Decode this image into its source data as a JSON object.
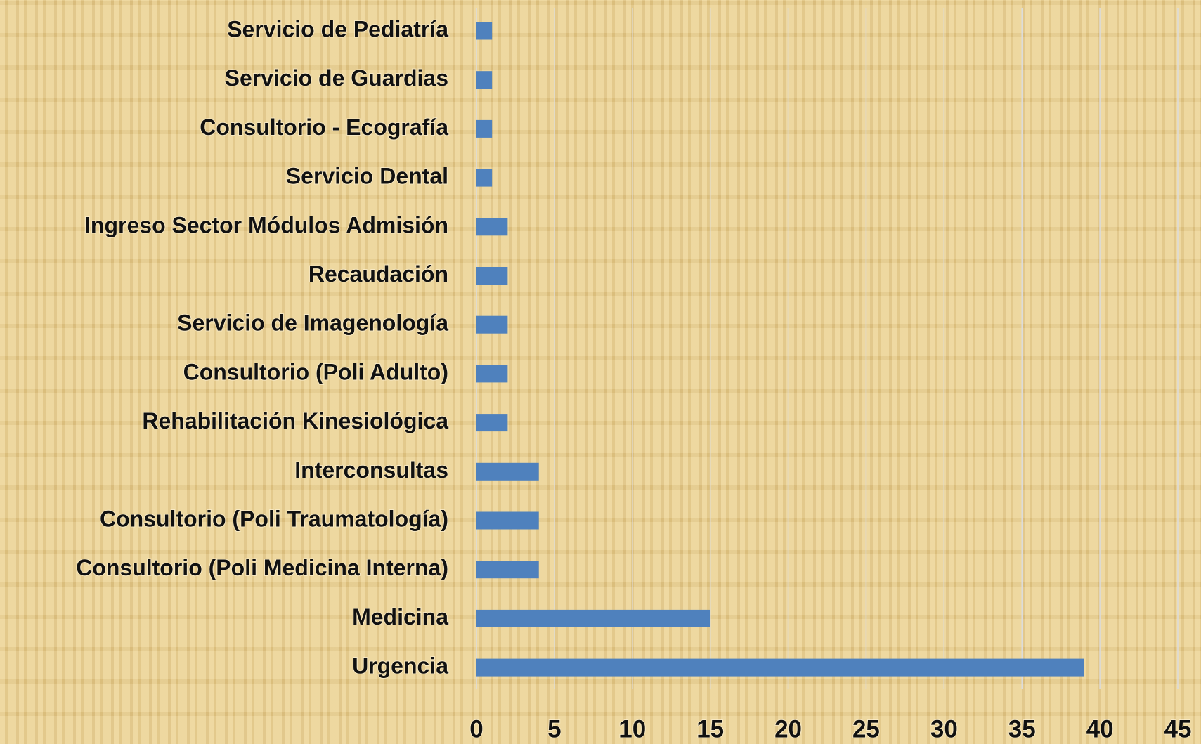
{
  "chart_data": {
    "type": "barh",
    "categories": [
      "Servicio de Pediatría",
      "Servicio de Guardias",
      "Consultorio - Ecografía",
      "Servicio Dental",
      "Ingreso Sector Módulos Admisión",
      "Recaudación",
      "Servicio de Imagenología",
      "Consultorio (Poli Adulto)",
      "Rehabilitación Kinesiológica",
      "Interconsultas",
      "Consultorio (Poli Traumatología)",
      "Consultorio (Poli Medicina Interna)",
      "Medicina",
      "Urgencia"
    ],
    "values": [
      1,
      1,
      1,
      1,
      2,
      2,
      2,
      2,
      2,
      4,
      4,
      4,
      15,
      39
    ],
    "color": "#4f81bd",
    "xlim": [
      0,
      45
    ],
    "xticks": [
      0,
      5,
      10,
      15,
      20,
      25,
      30,
      35,
      40,
      45
    ],
    "grid": true
  }
}
